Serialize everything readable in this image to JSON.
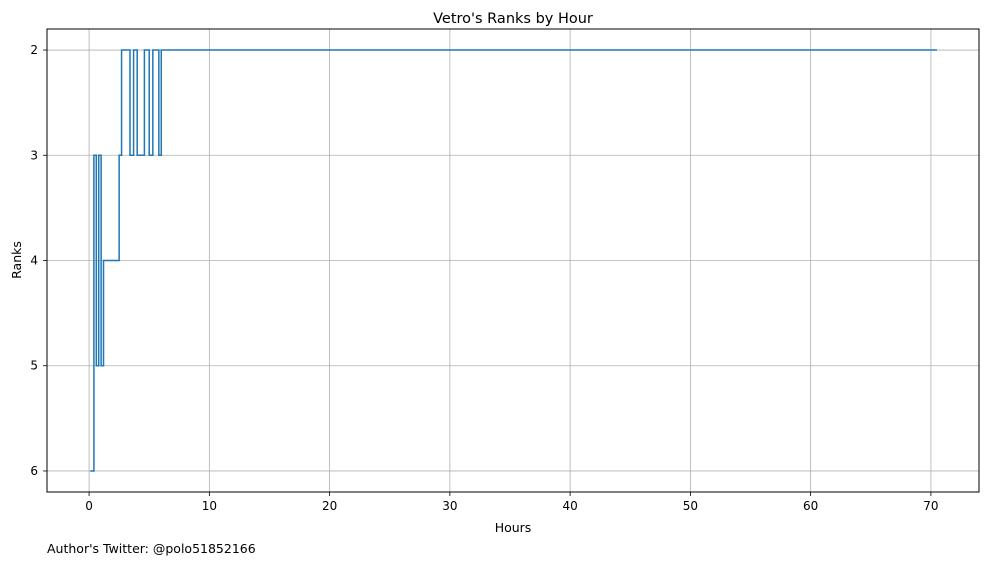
{
  "chart_data": {
    "type": "line",
    "drawstyle": "steps-post",
    "title": "Vetro's Ranks by Hour",
    "xlabel": "Hours",
    "ylabel": "Ranks",
    "y_inverted": true,
    "grid": true,
    "xlim": [
      -3.5,
      74
    ],
    "ylim": [
      6.2,
      1.8
    ],
    "x_ticks": [
      0,
      10,
      20,
      30,
      40,
      50,
      60,
      70
    ],
    "x_tick_labels": [
      "0",
      "10",
      "20",
      "30",
      "40",
      "50",
      "60",
      "70"
    ],
    "y_ticks": [
      2,
      3,
      4,
      5,
      6
    ],
    "y_tick_labels": [
      "2",
      "3",
      "4",
      "5",
      "6"
    ],
    "line_color": "#1f77b4",
    "series": [
      {
        "x": [
          0.1,
          0.4,
          0.6,
          0.8,
          1.0,
          1.2,
          2.5,
          2.7,
          3.4,
          3.7,
          4.0,
          4.6,
          5.0,
          5.3,
          5.8,
          6.0,
          70.5
        ],
        "y": [
          6,
          3,
          5,
          3,
          5,
          4,
          3,
          2,
          3,
          2,
          3,
          2,
          3,
          2,
          3,
          2,
          2
        ]
      }
    ]
  },
  "footer_text": "Author's Twitter: @polo51852166"
}
